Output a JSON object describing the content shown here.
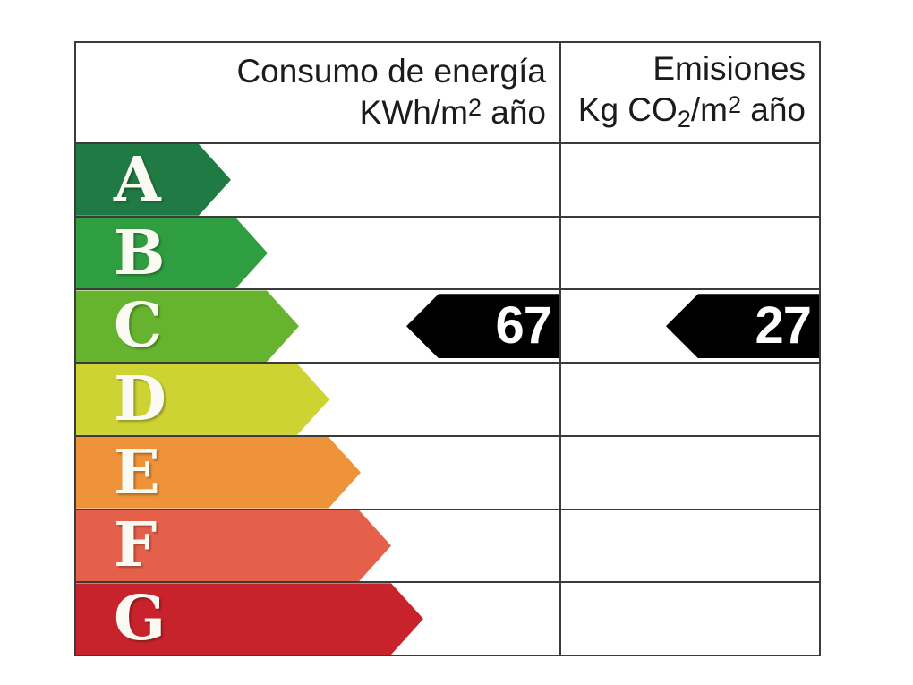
{
  "header": {
    "consumption": {
      "line1": "Consumo de energía",
      "unit_prefix": "KWh/m",
      "unit_exp": "2",
      "unit_suffix": " año"
    },
    "emissions": {
      "line1": "Emisiones",
      "unit_prefix": "Kg CO",
      "unit_sub": "2",
      "unit_mid": "/m",
      "unit_exp": "2",
      "unit_suffix": " año"
    }
  },
  "ratings": [
    {
      "letter": "A",
      "color": "#1f7a44",
      "arrow_width": 173
    },
    {
      "letter": "B",
      "color": "#2f9e41",
      "arrow_width": 214
    },
    {
      "letter": "C",
      "color": "#65b32e",
      "arrow_width": 249
    },
    {
      "letter": "D",
      "color": "#ccd332",
      "arrow_width": 283
    },
    {
      "letter": "E",
      "color": "#ee9339",
      "arrow_width": 318
    },
    {
      "letter": "F",
      "color": "#e5604a",
      "arrow_width": 352
    },
    {
      "letter": "G",
      "color": "#c8232c",
      "arrow_width": 388
    }
  ],
  "current_rating": {
    "letter": "C",
    "consumption_value": "67",
    "emissions_value": "27",
    "marker_color": "#000000",
    "marker_text_color": "#ffffff",
    "marker_width": 171
  },
  "chart_data": {
    "type": "table",
    "columns": [
      "Consumo de energía KWh/m2 año",
      "Emisiones Kg CO2/m2 año"
    ],
    "categories": [
      "A",
      "B",
      "C",
      "D",
      "E",
      "F",
      "G"
    ],
    "category_colors": [
      "#1f7a44",
      "#2f9e41",
      "#65b32e",
      "#ccd332",
      "#ee9339",
      "#e5604a",
      "#c8232c"
    ],
    "selected_category": "C",
    "values": {
      "consumo_kwh_m2_ano": 67,
      "emisiones_kg_co2_m2_ano": 27
    }
  }
}
